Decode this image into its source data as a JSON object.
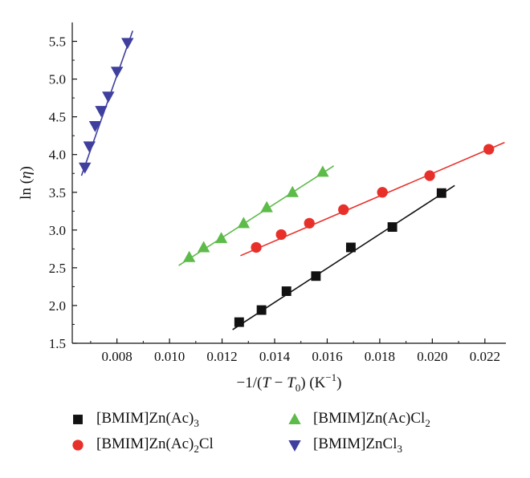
{
  "chart_data": {
    "type": "scatter",
    "xlabel": "−1/(T − T0) (K−1)",
    "ylabel": "ln (η)",
    "xlim": [
      0.0063,
      0.0228
    ],
    "ylim": [
      1.5,
      5.75
    ],
    "x_ticks": [
      0.008,
      0.01,
      0.012,
      0.014,
      0.016,
      0.018,
      0.02,
      0.022
    ],
    "x_tick_labels": [
      "0.008",
      "0.010",
      "0.012",
      "0.014",
      "0.016",
      "0.018",
      "0.020",
      "0.022"
    ],
    "y_ticks": [
      1.5,
      2.0,
      2.5,
      3.0,
      3.5,
      4.0,
      4.5,
      5.0,
      5.5
    ],
    "y_tick_labels": [
      "1.5",
      "2.0",
      "2.5",
      "3.0",
      "3.5",
      "4.0",
      "4.5",
      "5.0",
      "5.5"
    ],
    "grid": false,
    "legend_position": "bottom",
    "series": [
      {
        "name": "[BMIM]Zn(Ac)3",
        "name_base": "[BMIM]Zn(Ac)",
        "name_sub": "3",
        "name_tail": "",
        "marker": "square",
        "color": "#111111",
        "line_color": "#111111",
        "x": [
          0.01265,
          0.0135,
          0.01445,
          0.01557,
          0.0169,
          0.01848,
          0.02035
        ],
        "y": [
          1.78,
          1.94,
          2.19,
          2.39,
          2.77,
          3.04,
          3.49
        ],
        "fit": {
          "x": [
            0.0124,
            0.02085
          ],
          "y": [
            1.68,
            3.59
          ]
        }
      },
      {
        "name": "[BMIM]Zn(Ac)2Cl",
        "name_base": "[BMIM]Zn(Ac)",
        "name_sub": "2",
        "name_tail": "Cl",
        "marker": "circle",
        "color": "#e8302a",
        "line_color": "#e8302a",
        "x": [
          0.0133,
          0.01425,
          0.01532,
          0.01662,
          0.0181,
          0.0199,
          0.02215
        ],
        "y": [
          2.77,
          2.94,
          3.09,
          3.27,
          3.5,
          3.72,
          4.07
        ],
        "fit": {
          "x": [
            0.0127,
            0.02275
          ],
          "y": [
            2.66,
            4.16
          ]
        }
      },
      {
        "name": "[BMIM]Zn(Ac)Cl2",
        "name_base": "[BMIM]Zn(Ac)Cl",
        "name_sub": "2",
        "name_tail": "",
        "marker": "triangle-up",
        "color": "#5dbb4a",
        "line_color": "#5dbb4a",
        "x": [
          0.01075,
          0.0113,
          0.01197,
          0.01282,
          0.0137,
          0.01468,
          0.01583
        ],
        "y": [
          2.64,
          2.77,
          2.89,
          3.09,
          3.3,
          3.5,
          3.77
        ],
        "fit": {
          "x": [
            0.01035,
            0.01625
          ],
          "y": [
            2.53,
            3.85
          ]
        }
      },
      {
        "name": "[BMIM]ZnCl3",
        "name_base": "[BMIM]ZnCl",
        "name_sub": "3",
        "name_tail": "",
        "marker": "triangle-down",
        "color": "#3f3f9e",
        "line_color": "#3f3f9e",
        "x": [
          0.00678,
          0.00695,
          0.00717,
          0.0074,
          0.00767,
          0.008,
          0.0084
        ],
        "y": [
          3.83,
          4.11,
          4.38,
          4.58,
          4.77,
          5.1,
          5.48
        ],
        "fit": {
          "x": [
            0.00665,
            0.0086
          ],
          "y": [
            3.72,
            5.64
          ]
        }
      }
    ]
  }
}
